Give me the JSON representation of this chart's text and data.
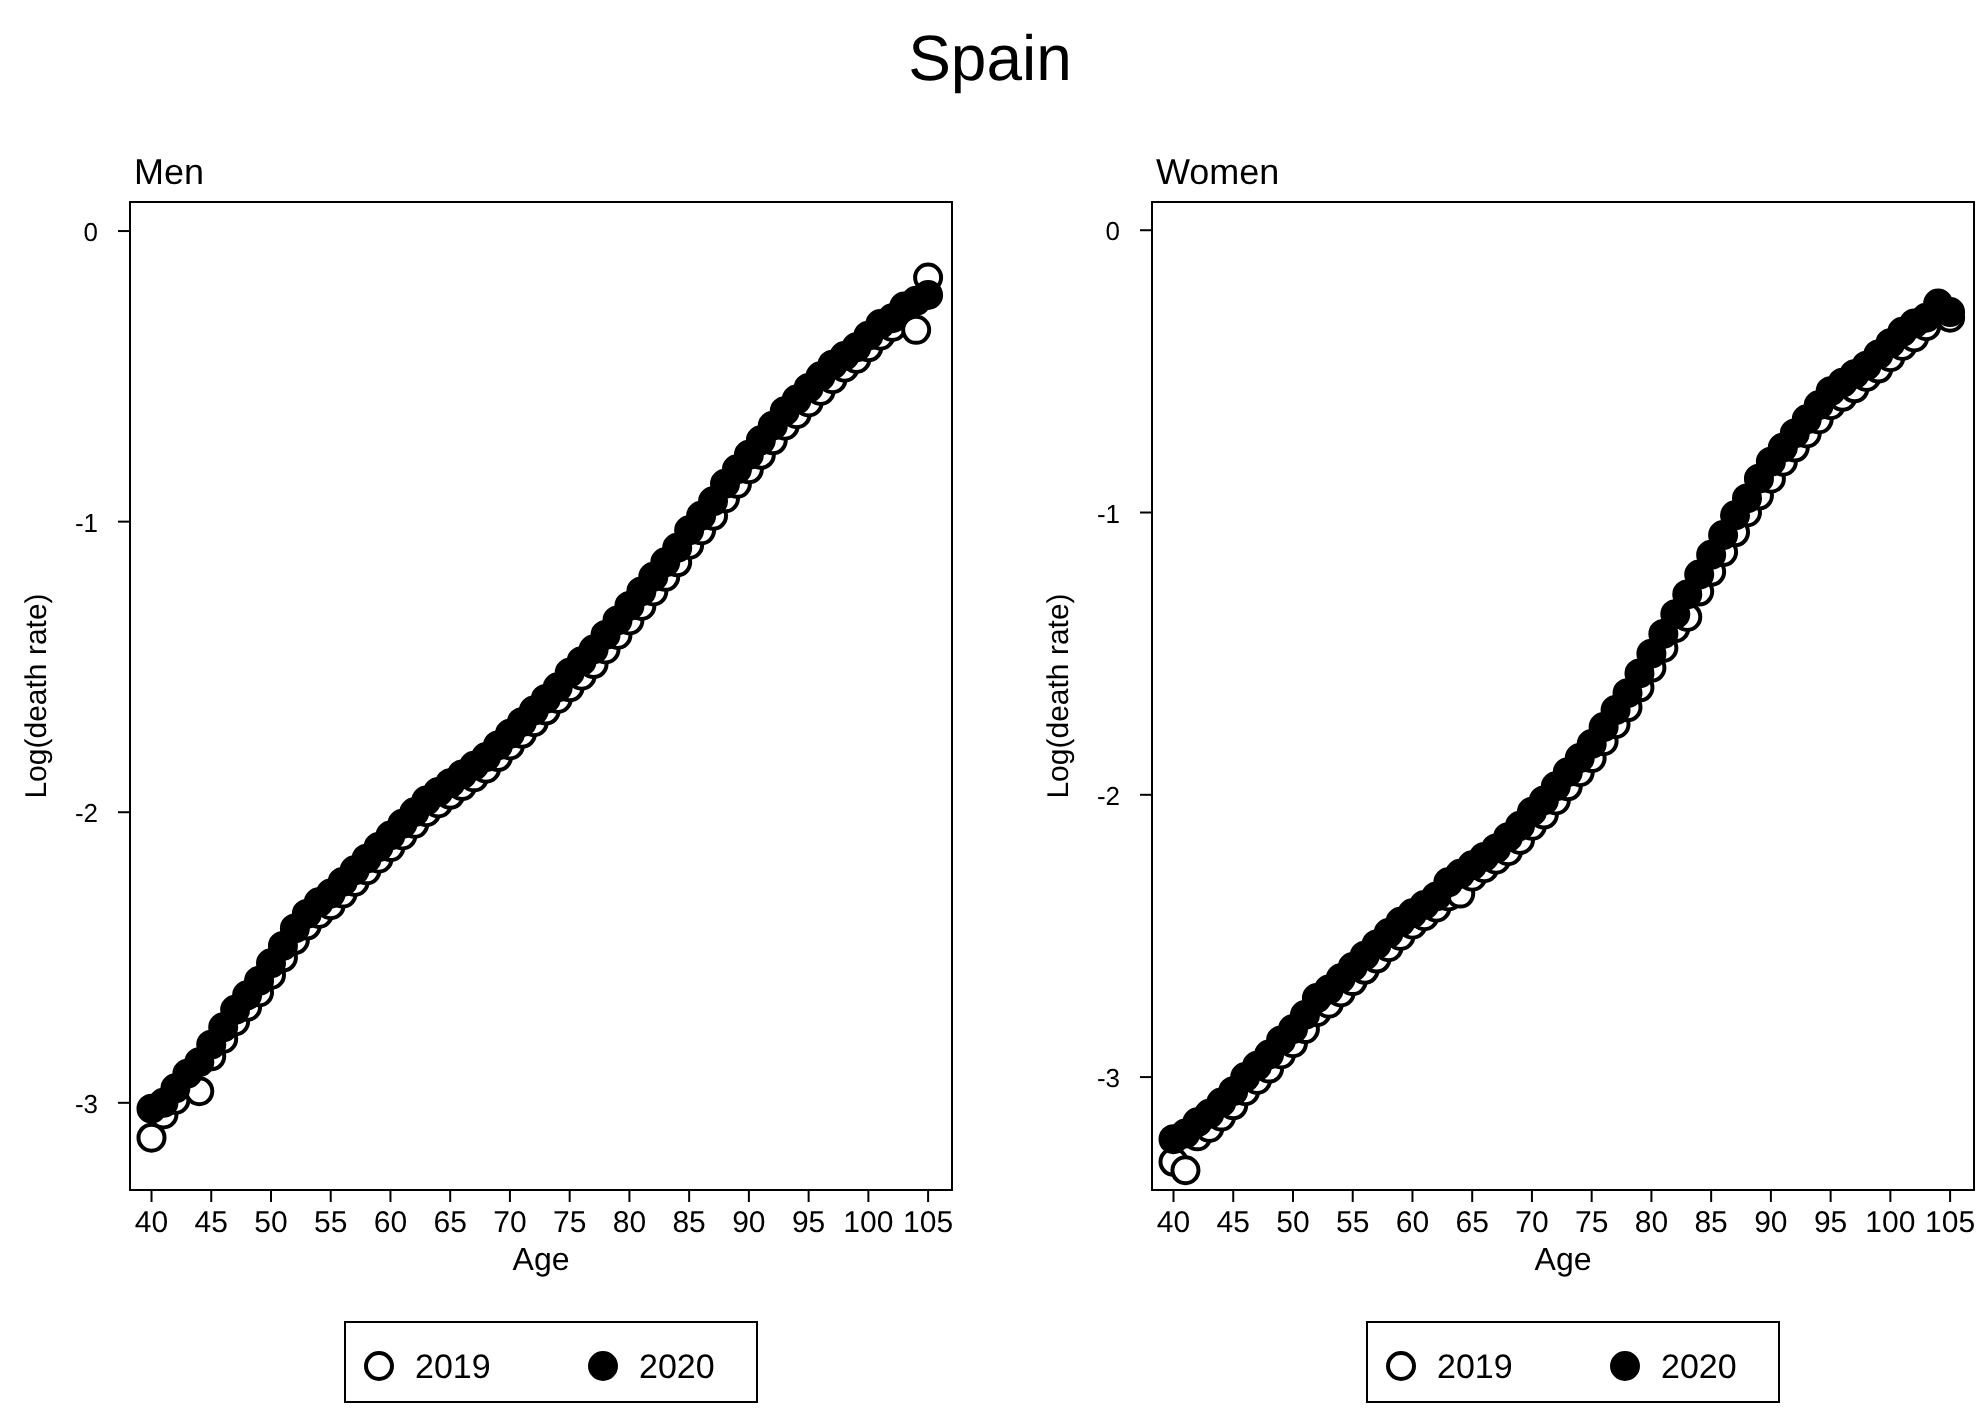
{
  "chart_data": [
    {
      "type": "scatter",
      "title": "Spain",
      "subtitle": "Men",
      "xlabel": "Age",
      "ylabel": "Log(death rate)",
      "xlim": [
        38.2,
        107
      ],
      "ylim": [
        -3.3,
        0.1
      ],
      "xticks": [
        40,
        45,
        50,
        55,
        60,
        65,
        70,
        75,
        80,
        85,
        90,
        95,
        100,
        105
      ],
      "yticks": [
        -3,
        -2,
        -1,
        0
      ],
      "grid": false,
      "legend": "bottom",
      "marker": "circle",
      "x": [
        40,
        41,
        42,
        43,
        44,
        45,
        46,
        47,
        48,
        49,
        50,
        51,
        52,
        53,
        54,
        55,
        56,
        57,
        58,
        59,
        60,
        61,
        62,
        63,
        64,
        65,
        66,
        67,
        68,
        69,
        70,
        71,
        72,
        73,
        74,
        75,
        76,
        77,
        78,
        79,
        80,
        81,
        82,
        83,
        84,
        85,
        86,
        87,
        88,
        89,
        90,
        91,
        92,
        93,
        94,
        95,
        96,
        97,
        98,
        99,
        100,
        101,
        102,
        103,
        104,
        105
      ],
      "series": [
        {
          "name": "2019",
          "color": "#ffffff",
          "values": [
            -3.12,
            -3.04,
            -2.99,
            null,
            -2.96,
            -2.84,
            -2.78,
            -2.72,
            -2.67,
            -2.62,
            -2.56,
            -2.5,
            -2.44,
            -2.39,
            -2.35,
            -2.32,
            -2.28,
            -2.24,
            -2.2,
            -2.16,
            -2.12,
            -2.08,
            -2.04,
            -2.0,
            -1.97,
            -1.94,
            -1.91,
            -1.88,
            -1.85,
            -1.81,
            -1.77,
            -1.73,
            -1.69,
            -1.65,
            -1.61,
            -1.57,
            -1.53,
            -1.49,
            -1.44,
            -1.39,
            -1.34,
            -1.29,
            -1.24,
            -1.19,
            -1.14,
            -1.08,
            -1.03,
            -0.98,
            -0.92,
            -0.87,
            -0.82,
            -0.77,
            -0.72,
            -0.67,
            -0.63,
            -0.59,
            -0.55,
            -0.51,
            -0.47,
            -0.44,
            -0.4,
            -0.36,
            -0.33,
            null,
            -0.34,
            -0.16
          ]
        },
        {
          "name": "2020",
          "color": "#000000",
          "values": [
            -3.02,
            -3.0,
            -2.95,
            -2.9,
            -2.86,
            -2.8,
            -2.74,
            -2.68,
            -2.63,
            -2.58,
            -2.52,
            -2.46,
            -2.4,
            -2.35,
            -2.31,
            -2.28,
            -2.24,
            -2.2,
            -2.16,
            -2.12,
            -2.08,
            -2.04,
            -2.0,
            -1.96,
            -1.93,
            -1.9,
            -1.87,
            -1.84,
            -1.81,
            -1.77,
            -1.73,
            -1.69,
            -1.65,
            -1.61,
            -1.57,
            -1.52,
            -1.48,
            -1.44,
            -1.39,
            -1.34,
            -1.29,
            -1.24,
            -1.19,
            -1.14,
            -1.09,
            -1.03,
            -0.98,
            -0.93,
            -0.87,
            -0.82,
            -0.77,
            -0.72,
            -0.67,
            -0.62,
            -0.58,
            -0.54,
            -0.5,
            -0.46,
            -0.43,
            -0.4,
            -0.36,
            -0.32,
            -0.3,
            -0.26,
            -0.24,
            -0.22
          ]
        }
      ]
    },
    {
      "type": "scatter",
      "subtitle": "Women",
      "xlabel": "Age",
      "ylabel": "Log(death rate)",
      "xlim": [
        38.2,
        107
      ],
      "ylim": [
        -3.4,
        0.1
      ],
      "xticks": [
        40,
        45,
        50,
        55,
        60,
        65,
        70,
        75,
        80,
        85,
        90,
        95,
        100,
        105
      ],
      "yticks": [
        -3,
        -2,
        -1,
        0
      ],
      "grid": false,
      "legend": "bottom",
      "marker": "circle",
      "x": [
        40,
        41,
        42,
        43,
        44,
        45,
        46,
        47,
        48,
        49,
        50,
        51,
        52,
        53,
        54,
        55,
        56,
        57,
        58,
        59,
        60,
        61,
        62,
        63,
        64,
        65,
        66,
        67,
        68,
        69,
        70,
        71,
        72,
        73,
        74,
        75,
        76,
        77,
        78,
        79,
        80,
        81,
        82,
        83,
        84,
        85,
        86,
        87,
        88,
        89,
        90,
        91,
        92,
        93,
        94,
        95,
        96,
        97,
        98,
        99,
        100,
        101,
        102,
        103,
        104,
        105
      ],
      "series": [
        {
          "name": "2019",
          "color": "#ffffff",
          "values": [
            -3.3,
            -3.33,
            -3.21,
            -3.18,
            -3.14,
            -3.1,
            -3.05,
            -3.01,
            -2.97,
            -2.92,
            -2.88,
            -2.83,
            -2.77,
            -2.74,
            -2.7,
            -2.66,
            -2.62,
            -2.58,
            -2.54,
            -2.5,
            -2.46,
            -2.43,
            -2.4,
            -2.36,
            -2.35,
            -2.29,
            -2.26,
            -2.23,
            -2.2,
            -2.16,
            -2.11,
            -2.07,
            -2.02,
            -1.97,
            -1.92,
            -1.87,
            -1.81,
            -1.75,
            -1.69,
            -1.62,
            -1.55,
            -1.48,
            -1.41,
            -1.37,
            -1.28,
            -1.21,
            -1.14,
            -1.07,
            -1.0,
            -0.94,
            -0.88,
            -0.82,
            -0.77,
            -0.72,
            -0.67,
            -0.62,
            -0.59,
            -0.56,
            -0.52,
            -0.49,
            -0.45,
            -0.41,
            -0.38,
            -0.34,
            null,
            -0.31
          ]
        },
        {
          "name": "2020",
          "color": "#000000",
          "values": [
            -3.22,
            -3.2,
            -3.16,
            -3.13,
            -3.09,
            -3.05,
            -3.0,
            -2.96,
            -2.92,
            -2.87,
            -2.83,
            -2.78,
            -2.72,
            -2.69,
            -2.65,
            -2.61,
            -2.57,
            -2.53,
            -2.49,
            -2.45,
            -2.42,
            -2.39,
            -2.36,
            -2.31,
            -2.28,
            -2.25,
            -2.22,
            -2.19,
            -2.15,
            -2.11,
            -2.06,
            -2.02,
            -1.97,
            -1.92,
            -1.87,
            -1.82,
            -1.76,
            -1.7,
            -1.64,
            -1.57,
            -1.5,
            -1.43,
            -1.36,
            -1.29,
            -1.22,
            -1.15,
            -1.08,
            -1.01,
            -0.95,
            -0.88,
            -0.82,
            -0.77,
            -0.72,
            -0.67,
            -0.62,
            -0.57,
            -0.54,
            -0.51,
            -0.48,
            -0.44,
            -0.4,
            -0.36,
            -0.33,
            -0.31,
            -0.26,
            -0.29
          ]
        }
      ]
    }
  ]
}
